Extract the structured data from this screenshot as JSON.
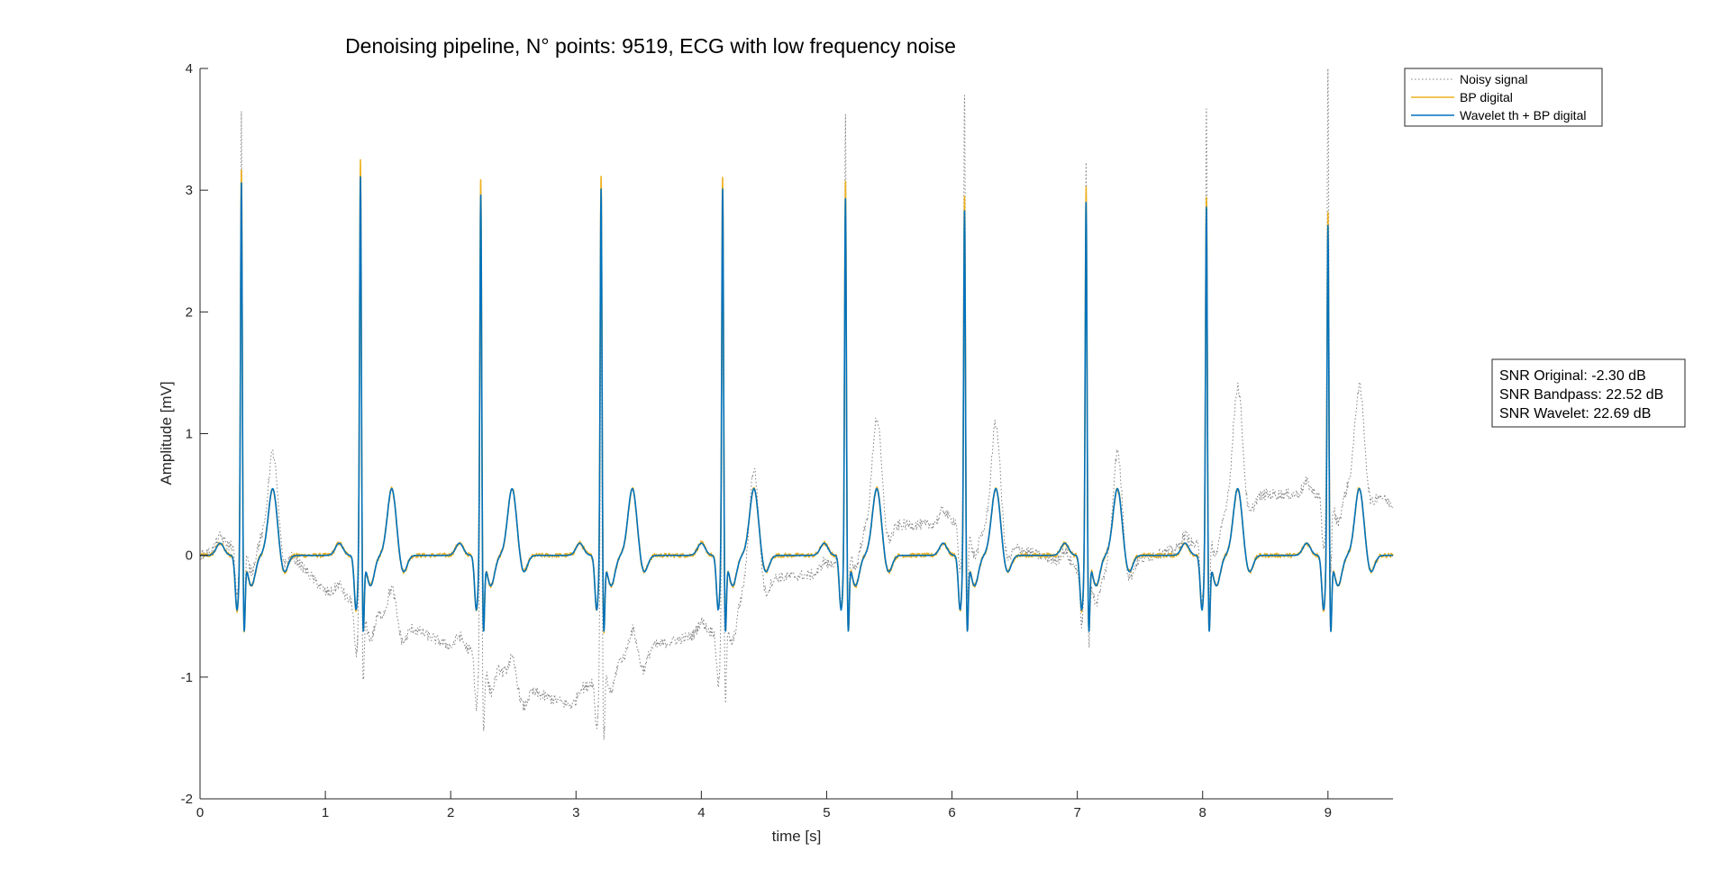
{
  "chart_data": {
    "type": "line",
    "title": "Denoising pipeline, N° points: 9519, ECG with low frequency noise",
    "xlabel": "time [s]",
    "ylabel": "Amplitude [mV]",
    "xlim": [
      0,
      9.519
    ],
    "ylim": [
      -2,
      4
    ],
    "xticks": [
      0,
      1,
      2,
      3,
      4,
      5,
      6,
      7,
      8,
      9
    ],
    "yticks": [
      -2,
      -1,
      0,
      1,
      2,
      3,
      4
    ],
    "grid": false,
    "legend_position": "top-right",
    "beats": [
      {
        "r_time": 0.33,
        "peak_noisy": 3.55,
        "peak_bp": 3.2,
        "peak_wavelet": 3.1,
        "t_wave_noisy": 0.88
      },
      {
        "r_time": 1.28,
        "peak_noisy": 3.35,
        "peak_bp": 3.28,
        "peak_wavelet": 3.15,
        "t_wave_noisy": -0.35
      },
      {
        "r_time": 2.24,
        "peak_noisy": 3.0,
        "peak_bp": 3.12,
        "peak_wavelet": 3.0,
        "t_wave_noisy": -0.95
      },
      {
        "r_time": 3.2,
        "peak_noisy": 2.95,
        "peak_bp": 3.15,
        "peak_wavelet": 3.05,
        "t_wave_noisy": -0.7
      },
      {
        "r_time": 4.17,
        "peak_noisy": 3.15,
        "peak_bp": 3.15,
        "peak_wavelet": 3.05,
        "t_wave_noisy": 0.8
      },
      {
        "r_time": 5.15,
        "peak_noisy": 3.55,
        "peak_bp": 3.1,
        "peak_wavelet": 2.97,
        "t_wave_noisy": 1.22
      },
      {
        "r_time": 6.1,
        "peak_noisy": 3.55,
        "peak_bp": 2.98,
        "peak_wavelet": 2.87,
        "t_wave_noisy": 1.18
      },
      {
        "r_time": 7.07,
        "peak_noisy": 3.4,
        "peak_bp": 3.05,
        "peak_wavelet": 2.94,
        "t_wave_noisy": 0.95
      },
      {
        "r_time": 8.03,
        "peak_noisy": 3.55,
        "peak_bp": 2.97,
        "peak_wavelet": 2.9,
        "t_wave_noisy": 1.5
      },
      {
        "r_time": 9.0,
        "peak_noisy": 3.55,
        "peak_bp": 2.85,
        "peak_wavelet": 2.75,
        "t_wave_noisy": 1.45
      }
    ],
    "baseline_drift": {
      "x": [
        0,
        0.3,
        0.6,
        1.0,
        1.28,
        1.6,
        2.0,
        2.24,
        2.6,
        3.0,
        3.2,
        3.6,
        4.17,
        4.4,
        5.0,
        5.15,
        5.4,
        5.8,
        6.1,
        6.4,
        7.0,
        7.2,
        7.6,
        8.0,
        8.2,
        8.5,
        9.0,
        9.3,
        9.5
      ],
      "y": [
        0,
        0.1,
        0.15,
        -0.3,
        -0.4,
        -0.55,
        -0.75,
        -0.8,
        -1.1,
        -1.25,
        -0.9,
        -0.75,
        -0.6,
        -0.2,
        -0.15,
        0.1,
        0.25,
        0.25,
        0.3,
        0.1,
        -0.1,
        -0.15,
        0.0,
        0.1,
        0.4,
        0.5,
        0.5,
        0.6,
        0.42
      ]
    },
    "series": [
      {
        "name": "Noisy signal",
        "color": "#808080",
        "style": "dotted"
      },
      {
        "name": "BP digital",
        "color": "#EDB120",
        "style": "solid"
      },
      {
        "name": "Wavelet th + BP digital",
        "color": "#0072BD",
        "style": "solid"
      }
    ]
  },
  "snr": {
    "original": "SNR Original: -2.30 dB",
    "bandpass": "SNR Bandpass: 22.52 dB",
    "wavelet": "SNR Wavelet: 22.69 dB"
  }
}
